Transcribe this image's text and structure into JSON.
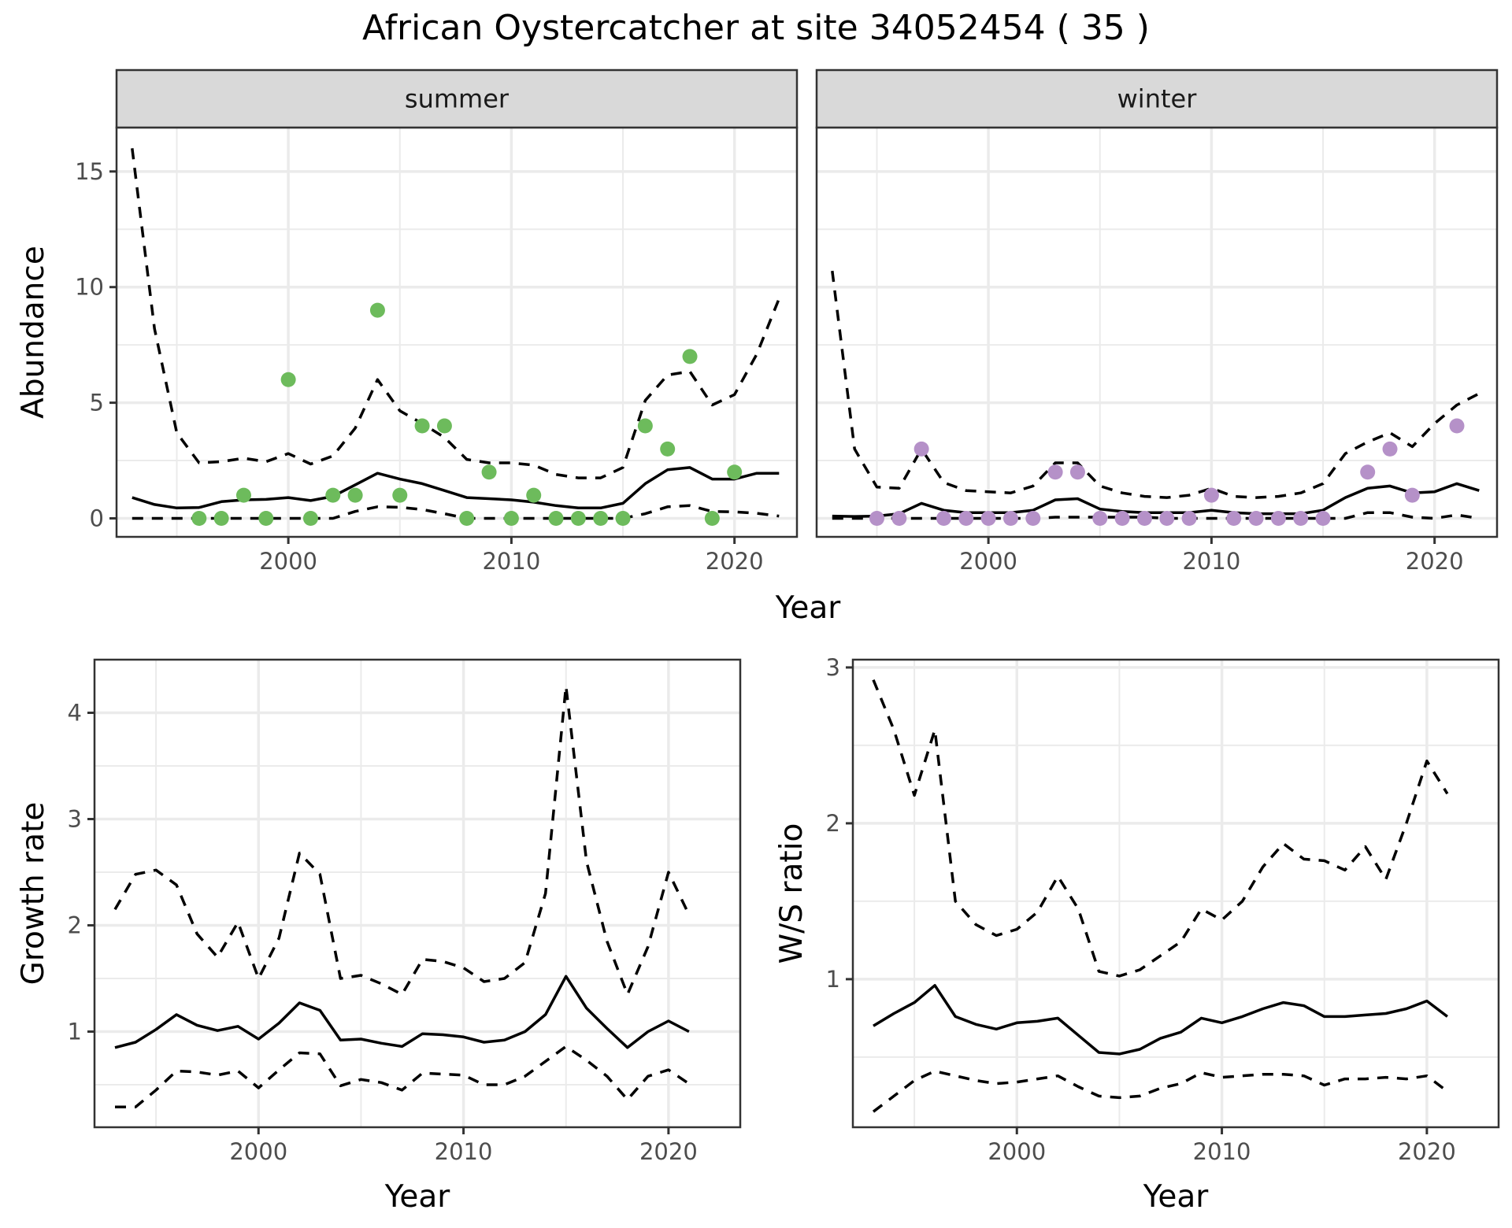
{
  "title": "African Oystercatcher at site 34052454 ( 35 )",
  "colors": {
    "summer_points": "#6dbb5c",
    "winter_points": "#b591c8",
    "lines": "#000000",
    "strip_bg": "#d9d9d9",
    "grid": "#ebebeb"
  },
  "chart_data": [
    {
      "type": "line+scatter",
      "facet": "summer",
      "strip_label": "summer",
      "xlabel": "Year",
      "ylabel": "Abundance",
      "xlim": [
        1992.3,
        2022.8
      ],
      "ylim": [
        -0.8,
        16.9
      ],
      "x_ticks": [
        2000,
        2010,
        2020
      ],
      "x_tick_labels": [
        "2000",
        "2010",
        "2020"
      ],
      "y_ticks": [
        0,
        5,
        10,
        15
      ],
      "y_tick_labels": [
        "0",
        "5",
        "10",
        "15"
      ],
      "grid": true,
      "years": [
        1993,
        1994,
        1995,
        1996,
        1997,
        1998,
        1999,
        2000,
        2001,
        2002,
        2003,
        2004,
        2005,
        2006,
        2007,
        2008,
        2009,
        2010,
        2011,
        2012,
        2013,
        2014,
        2015,
        2016,
        2017,
        2018,
        2019,
        2020,
        2021,
        2022
      ],
      "series": [
        {
          "name": "mean",
          "style": "solid",
          "values": [
            0.9,
            0.6,
            0.45,
            0.47,
            0.72,
            0.8,
            0.82,
            0.9,
            0.77,
            0.95,
            1.45,
            1.95,
            1.7,
            1.5,
            1.2,
            0.9,
            0.85,
            0.8,
            0.7,
            0.55,
            0.45,
            0.45,
            0.65,
            1.5,
            2.1,
            2.2,
            1.7,
            1.7,
            1.95,
            1.95
          ]
        },
        {
          "name": "upper",
          "style": "dashed",
          "values": [
            16,
            8.2,
            3.7,
            2.4,
            2.45,
            2.6,
            2.45,
            2.8,
            2.35,
            2.7,
            3.9,
            6.0,
            4.65,
            4.1,
            3.5,
            2.55,
            2.4,
            2.4,
            2.3,
            1.9,
            1.75,
            1.75,
            2.2,
            5.1,
            6.2,
            6.35,
            4.9,
            5.35,
            7.1,
            9.5
          ]
        },
        {
          "name": "lower",
          "style": "dashed",
          "values": [
            0,
            0,
            0,
            0,
            0,
            0,
            0,
            0,
            0,
            0,
            0.3,
            0.5,
            0.48,
            0.38,
            0.2,
            0,
            0,
            0,
            0,
            0,
            0,
            0,
            0,
            0.2,
            0.5,
            0.55,
            0.3,
            0.28,
            0.22,
            0.1
          ]
        }
      ],
      "points": {
        "x": [
          1996,
          1997,
          1998,
          1999,
          2000,
          2001,
          2002,
          2003,
          2004,
          2005,
          2006,
          2007,
          2008,
          2009,
          2010,
          2011,
          2012,
          2013,
          2014,
          2015,
          2016,
          2017,
          2018,
          2019,
          2020
        ],
        "y": [
          0,
          0,
          1,
          0,
          6,
          0,
          1,
          1,
          9,
          1,
          4,
          4,
          0,
          2,
          0,
          1,
          0,
          0,
          0,
          0,
          4,
          3,
          7,
          0,
          2
        ]
      }
    },
    {
      "type": "line+scatter",
      "facet": "winter",
      "strip_label": "winter",
      "xlabel": "Year",
      "ylabel": "Abundance",
      "xlim": [
        1992.3,
        2022.8
      ],
      "ylim": [
        -0.8,
        16.9
      ],
      "x_ticks": [
        2000,
        2010,
        2020
      ],
      "x_tick_labels": [
        "2000",
        "2010",
        "2020"
      ],
      "y_ticks": [
        0,
        5,
        10,
        15
      ],
      "grid": true,
      "years": [
        1993,
        1994,
        1995,
        1996,
        1997,
        1998,
        1999,
        2000,
        2001,
        2002,
        2003,
        2004,
        2005,
        2006,
        2007,
        2008,
        2009,
        2010,
        2011,
        2012,
        2013,
        2014,
        2015,
        2016,
        2017,
        2018,
        2019,
        2020,
        2021,
        2022
      ],
      "series": [
        {
          "name": "mean",
          "style": "solid",
          "values": [
            0.1,
            0.08,
            0.1,
            0.2,
            0.65,
            0.35,
            0.25,
            0.25,
            0.25,
            0.35,
            0.8,
            0.85,
            0.4,
            0.3,
            0.25,
            0.25,
            0.25,
            0.35,
            0.25,
            0.2,
            0.2,
            0.2,
            0.35,
            0.9,
            1.3,
            1.4,
            1.1,
            1.15,
            1.5,
            1.2
          ]
        },
        {
          "name": "upper",
          "style": "dashed",
          "values": [
            10.7,
            3.0,
            1.35,
            1.3,
            3.0,
            1.55,
            1.2,
            1.15,
            1.1,
            1.4,
            2.4,
            2.4,
            1.4,
            1.1,
            0.95,
            0.9,
            1.0,
            1.3,
            0.95,
            0.9,
            0.95,
            1.1,
            1.5,
            2.8,
            3.3,
            3.7,
            3.1,
            4.1,
            4.9,
            5.4
          ]
        },
        {
          "name": "lower",
          "style": "dashed",
          "values": [
            0,
            0,
            0,
            0,
            0,
            0,
            0,
            0,
            0,
            0,
            0.05,
            0.05,
            0.05,
            0.05,
            0.05,
            0,
            0,
            0,
            0,
            0,
            0,
            0,
            0,
            0,
            0.25,
            0.25,
            0.05,
            0,
            0.15,
            0
          ]
        }
      ],
      "points": {
        "x": [
          1995,
          1996,
          1997,
          1998,
          1999,
          2000,
          2001,
          2002,
          2003,
          2004,
          2005,
          2006,
          2007,
          2008,
          2009,
          2010,
          2011,
          2012,
          2013,
          2014,
          2015,
          2017,
          2018,
          2019,
          2021
        ],
        "y": [
          0,
          0,
          3,
          0,
          0,
          0,
          0,
          0,
          2,
          2,
          0,
          0,
          0,
          0,
          0,
          1,
          0,
          0,
          0,
          0,
          0,
          2,
          3,
          1,
          4
        ]
      }
    },
    {
      "type": "line",
      "facet": "growth",
      "xlabel": "Year",
      "ylabel": "Growth rate",
      "xlim": [
        1992.0,
        2023.5
      ],
      "ylim": [
        0.1,
        4.5
      ],
      "x_ticks": [
        2000,
        2010,
        2020
      ],
      "x_tick_labels": [
        "2000",
        "2010",
        "2020"
      ],
      "y_ticks": [
        1,
        2,
        3,
        4
      ],
      "y_tick_labels": [
        "1",
        "2",
        "3",
        "4"
      ],
      "grid": true,
      "years": [
        1993,
        1994,
        1995,
        1996,
        1997,
        1998,
        1999,
        2000,
        2001,
        2002,
        2003,
        2004,
        2005,
        2006,
        2007,
        2008,
        2009,
        2010,
        2011,
        2012,
        2013,
        2014,
        2015,
        2016,
        2017,
        2018,
        2019,
        2020,
        2021
      ],
      "series": [
        {
          "name": "mean",
          "style": "solid",
          "values": [
            0.85,
            0.9,
            1.02,
            1.16,
            1.06,
            1.01,
            1.05,
            0.93,
            1.08,
            1.27,
            1.2,
            0.92,
            0.93,
            0.89,
            0.86,
            0.98,
            0.97,
            0.95,
            0.9,
            0.92,
            1.0,
            1.16,
            1.52,
            1.22,
            1.03,
            0.85,
            1.0,
            1.1,
            1.0
          ]
        },
        {
          "name": "upper",
          "style": "dashed",
          "values": [
            2.15,
            2.48,
            2.52,
            2.38,
            1.92,
            1.7,
            2.03,
            1.5,
            1.88,
            2.68,
            2.48,
            1.5,
            1.53,
            1.45,
            1.35,
            1.68,
            1.66,
            1.6,
            1.47,
            1.5,
            1.65,
            2.3,
            4.25,
            2.6,
            1.85,
            1.35,
            1.8,
            2.5,
            2.1
          ]
        },
        {
          "name": "lower",
          "style": "dashed",
          "values": [
            0.29,
            0.29,
            0.45,
            0.63,
            0.62,
            0.59,
            0.63,
            0.47,
            0.64,
            0.8,
            0.79,
            0.49,
            0.55,
            0.52,
            0.45,
            0.61,
            0.6,
            0.59,
            0.5,
            0.5,
            0.58,
            0.72,
            0.86,
            0.73,
            0.58,
            0.36,
            0.58,
            0.64,
            0.51
          ]
        }
      ]
    },
    {
      "type": "line",
      "facet": "ws_ratio",
      "xlabel": "Year",
      "ylabel": "W/S ratio",
      "xlim": [
        1992.0,
        2023.5
      ],
      "ylim": [
        0.05,
        3.05
      ],
      "x_ticks": [
        2000,
        2010,
        2020
      ],
      "x_tick_labels": [
        "2000",
        "2010",
        "2020"
      ],
      "y_ticks": [
        1,
        2,
        3
      ],
      "y_tick_labels": [
        "1",
        "2",
        "3"
      ],
      "grid": true,
      "years": [
        1993,
        1994,
        1995,
        1996,
        1997,
        1998,
        1999,
        2000,
        2001,
        2002,
        2003,
        2004,
        2005,
        2006,
        2007,
        2008,
        2009,
        2010,
        2011,
        2012,
        2013,
        2014,
        2015,
        2016,
        2017,
        2018,
        2019,
        2020,
        2021
      ],
      "series": [
        {
          "name": "mean",
          "style": "solid",
          "values": [
            0.7,
            0.78,
            0.85,
            0.96,
            0.76,
            0.71,
            0.68,
            0.72,
            0.73,
            0.75,
            0.64,
            0.53,
            0.52,
            0.55,
            0.62,
            0.66,
            0.75,
            0.72,
            0.76,
            0.81,
            0.85,
            0.83,
            0.76,
            0.76,
            0.77,
            0.78,
            0.81,
            0.86,
            0.76
          ]
        },
        {
          "name": "upper",
          "style": "dashed",
          "values": [
            2.92,
            2.6,
            2.18,
            2.6,
            1.5,
            1.35,
            1.28,
            1.32,
            1.43,
            1.66,
            1.45,
            1.05,
            1.02,
            1.06,
            1.15,
            1.24,
            1.45,
            1.38,
            1.5,
            1.72,
            1.87,
            1.77,
            1.76,
            1.7,
            1.85,
            1.64,
            2.0,
            2.4,
            2.19
          ]
        },
        {
          "name": "lower",
          "style": "dashed",
          "values": [
            0.15,
            0.25,
            0.35,
            0.41,
            0.38,
            0.35,
            0.33,
            0.34,
            0.36,
            0.38,
            0.31,
            0.25,
            0.24,
            0.25,
            0.3,
            0.33,
            0.4,
            0.37,
            0.38,
            0.39,
            0.39,
            0.38,
            0.32,
            0.36,
            0.36,
            0.37,
            0.36,
            0.38,
            0.28
          ]
        }
      ]
    }
  ]
}
